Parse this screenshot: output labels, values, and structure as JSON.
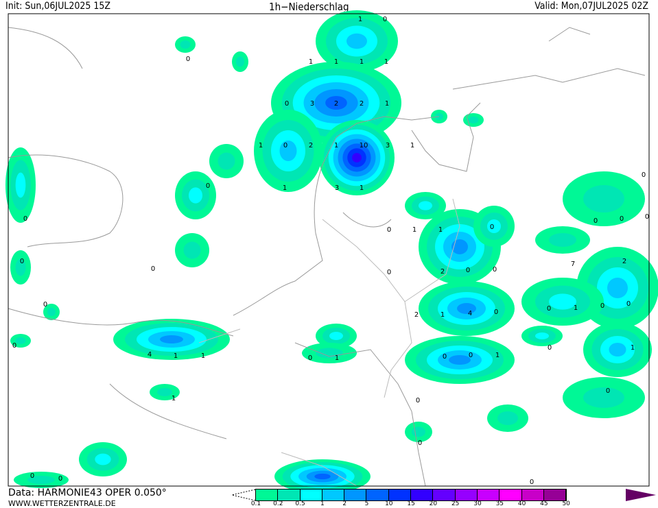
{
  "header": {
    "init": "Init: Sun,06JUL2025 15Z",
    "title": "1h−Niederschlag",
    "valid": "Valid: Mon,07JUL2025 02Z"
  },
  "footer": {
    "data_source": "Data: HARMONIE43 OPER 0.050°",
    "website": "WWW.WETTERZENTRALE.DE"
  },
  "legend": {
    "ticks": [
      "0.1",
      "0.2",
      "0.5",
      "1",
      "2",
      "5",
      "10",
      "15",
      "20",
      "25",
      "30",
      "35",
      "40",
      "45",
      "50"
    ],
    "colors": [
      "#00f896",
      "#00e6b4",
      "#00ffff",
      "#00c8ff",
      "#0096ff",
      "#0064ff",
      "#0032ff",
      "#3200ff",
      "#6400ff",
      "#9600ff",
      "#c800ff",
      "#ff00ff",
      "#c800c8",
      "#960096"
    ],
    "overflow_color": "#640064"
  },
  "map_labels": [
    "1",
    "0",
    "0",
    "1",
    "1",
    "1",
    "1",
    "0",
    "3",
    "2",
    "2",
    "1",
    "1",
    "0",
    "2",
    "1",
    "10",
    "3",
    "1",
    "1",
    "3",
    "1",
    "0",
    "0",
    "0",
    "0",
    "1",
    "1",
    "0",
    "0",
    "0",
    "0",
    "0",
    "0",
    "0",
    "2",
    "7",
    "2",
    "0",
    "0",
    "0",
    "2",
    "1",
    "4",
    "0",
    "0",
    "1",
    "0",
    "0",
    "0",
    "4",
    "1",
    "1",
    "0",
    "1",
    "0",
    "0",
    "1",
    "0",
    "1",
    "1",
    "0",
    "0",
    "0",
    "0",
    "0",
    "0"
  ]
}
